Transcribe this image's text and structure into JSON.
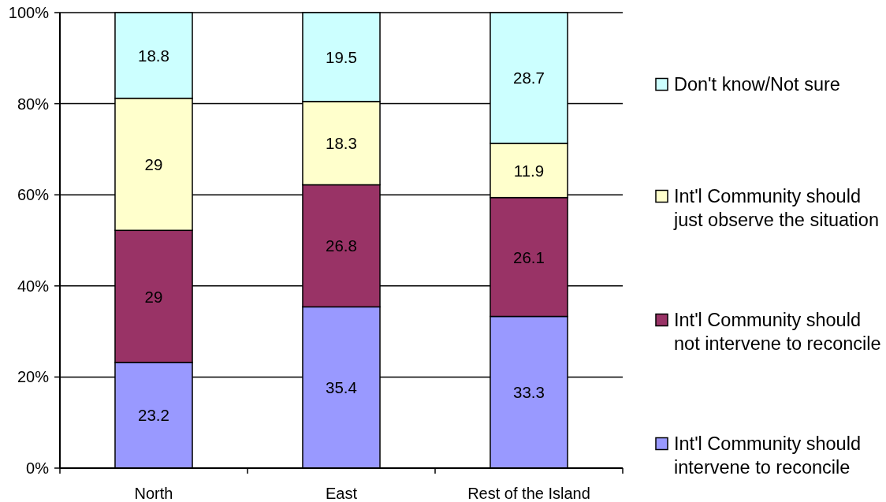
{
  "chart_data": {
    "type": "bar",
    "stacked": true,
    "categories": [
      "North",
      "East",
      "Rest of the Island"
    ],
    "series": [
      {
        "name": "Int'l Community should intervene to reconcile",
        "color": "#9999ff",
        "values": [
          23.2,
          35.4,
          33.3
        ]
      },
      {
        "name": "Int'l Community should not intervene to reconcile",
        "color": "#993366",
        "values": [
          29,
          26.8,
          26.1
        ]
      },
      {
        "name": "Int'l Community should just observe the situation",
        "color": "#ffffcc",
        "values": [
          29,
          18.3,
          11.9
        ]
      },
      {
        "name": "Don't know/Not sure",
        "color": "#ccffff",
        "values": [
          18.8,
          19.5,
          28.7
        ]
      }
    ],
    "ylim": [
      0,
      100
    ],
    "yticks": [
      {
        "value": 0,
        "label": "0%"
      },
      {
        "value": 20,
        "label": "20%"
      },
      {
        "value": 40,
        "label": "40%"
      },
      {
        "value": 60,
        "label": "60%"
      },
      {
        "value": 80,
        "label": "80%"
      },
      {
        "value": 100,
        "label": "100%"
      }
    ],
    "grid": "y",
    "data_labels": true,
    "legend": "right"
  }
}
